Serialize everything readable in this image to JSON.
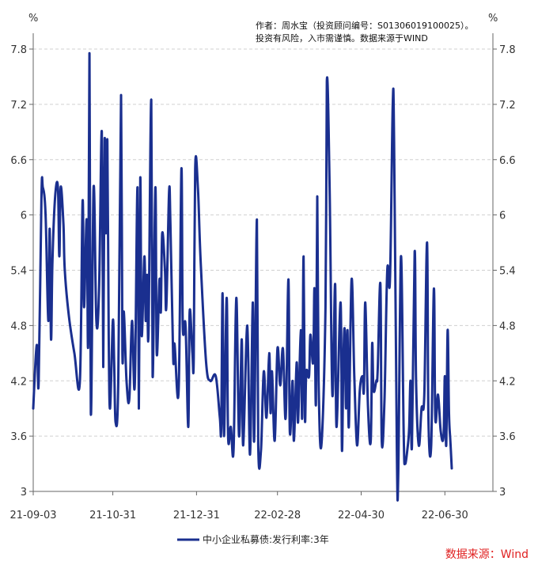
{
  "note": {
    "line1": "作者：周水宝（投资顾问编号：S0130601910​0025）。",
    "line2": "投资有风险，入市需谨慎。数据来源于WIND"
  },
  "source_label": "数据来源：Wind",
  "chart_data": {
    "type": "line",
    "left_unit": "%",
    "right_unit": "%",
    "yticks": [
      "7.8",
      "7.2",
      "6.6",
      "6",
      "5.4",
      "4.8",
      "4.2",
      "3.6",
      "3"
    ],
    "ylim": [
      3.0,
      7.8
    ],
    "xticks": [
      "21-09-03",
      "21-10-31",
      "21-12-31",
      "22-02-28",
      "22-04-30",
      "22-06-30"
    ],
    "xtick_index": [
      0,
      58,
      119,
      178,
      239,
      300
    ],
    "x_range": [
      0,
      335
    ],
    "grid": "horizontal-dashed",
    "legend_position": "bottom-center",
    "series": [
      {
        "name": "中小企业私募债:发行利率:3年",
        "color": "#1a2f8f",
        "points": [
          [
            0,
            3.9
          ],
          [
            2,
            4.5
          ],
          [
            3,
            4.55
          ],
          [
            4,
            4.2
          ],
          [
            6,
            6.2
          ],
          [
            7,
            6.3
          ],
          [
            9,
            6.0
          ],
          [
            11,
            4.85
          ],
          [
            12,
            5.85
          ],
          [
            13,
            4.65
          ],
          [
            14,
            5.5
          ],
          [
            16,
            6.2
          ],
          [
            18,
            6.3
          ],
          [
            19,
            5.55
          ],
          [
            20,
            6.3
          ],
          [
            22,
            5.9
          ],
          [
            23,
            5.4
          ],
          [
            26,
            4.9
          ],
          [
            30,
            4.5
          ],
          [
            34,
            4.2
          ],
          [
            36,
            6.15
          ],
          [
            37,
            5.0
          ],
          [
            39,
            5.95
          ],
          [
            40,
            4.6
          ],
          [
            41,
            7.75
          ],
          [
            42,
            3.85
          ],
          [
            44,
            6.3
          ],
          [
            46,
            4.85
          ],
          [
            48,
            5.2
          ],
          [
            50,
            6.9
          ],
          [
            51,
            4.35
          ],
          [
            52,
            6.8
          ],
          [
            53,
            5.8
          ],
          [
            54,
            6.8
          ],
          [
            55,
            4.7
          ],
          [
            56,
            3.9
          ],
          [
            58,
            4.85
          ],
          [
            59,
            4.4
          ],
          [
            60,
            3.75
          ],
          [
            62,
            4.2
          ],
          [
            64,
            7.3
          ],
          [
            65,
            4.5
          ],
          [
            66,
            4.95
          ],
          [
            68,
            4.2
          ],
          [
            70,
            4.0
          ],
          [
            72,
            4.85
          ],
          [
            74,
            4.15
          ],
          [
            76,
            6.3
          ],
          [
            77,
            3.9
          ],
          [
            78,
            6.4
          ],
          [
            79,
            4.7
          ],
          [
            81,
            5.55
          ],
          [
            82,
            4.85
          ],
          [
            83,
            5.35
          ],
          [
            84,
            4.7
          ],
          [
            86,
            7.25
          ],
          [
            87,
            4.25
          ],
          [
            89,
            6.3
          ],
          [
            90,
            4.5
          ],
          [
            92,
            5.3
          ],
          [
            93,
            4.95
          ],
          [
            94,
            5.8
          ],
          [
            96,
            5.4
          ],
          [
            97,
            5.0
          ],
          [
            99,
            6.25
          ],
          [
            100,
            5.9
          ],
          [
            102,
            4.45
          ],
          [
            103,
            4.6
          ],
          [
            106,
            4.1
          ],
          [
            108,
            6.5
          ],
          [
            109,
            4.8
          ],
          [
            111,
            4.8
          ],
          [
            113,
            3.7
          ],
          [
            114,
            4.95
          ],
          [
            116,
            4.5
          ],
          [
            117,
            4.45
          ],
          [
            118,
            6.5
          ],
          [
            120,
            6.3
          ],
          [
            122,
            5.5
          ],
          [
            126,
            4.4
          ],
          [
            129,
            4.2
          ],
          [
            133,
            4.25
          ],
          [
            136,
            3.8
          ],
          [
            137,
            3.7
          ],
          [
            138,
            5.15
          ],
          [
            139,
            3.6
          ],
          [
            141,
            5.1
          ],
          [
            142,
            3.6
          ],
          [
            144,
            3.7
          ],
          [
            146,
            3.45
          ],
          [
            148,
            5.1
          ],
          [
            150,
            3.6
          ],
          [
            152,
            4.65
          ],
          [
            153,
            3.5
          ],
          [
            156,
            4.8
          ],
          [
            158,
            3.4
          ],
          [
            160,
            5.05
          ],
          [
            161,
            3.55
          ],
          [
            163,
            5.95
          ],
          [
            164,
            3.5
          ],
          [
            166,
            3.45
          ],
          [
            168,
            4.3
          ],
          [
            170,
            3.8
          ],
          [
            172,
            4.5
          ],
          [
            173,
            3.85
          ],
          [
            174,
            4.3
          ],
          [
            176,
            3.55
          ],
          [
            178,
            4.55
          ],
          [
            180,
            4.15
          ],
          [
            182,
            4.55
          ],
          [
            184,
            3.8
          ],
          [
            186,
            5.3
          ],
          [
            187,
            3.65
          ],
          [
            189,
            4.2
          ],
          [
            190,
            3.55
          ],
          [
            192,
            4.4
          ],
          [
            193,
            3.75
          ],
          [
            195,
            4.75
          ],
          [
            196,
            3.8
          ],
          [
            197,
            5.55
          ],
          [
            198,
            3.8
          ],
          [
            199,
            4.3
          ],
          [
            201,
            4.25
          ],
          [
            202,
            4.7
          ],
          [
            204,
            4.4
          ],
          [
            205,
            5.2
          ],
          [
            206,
            3.95
          ],
          [
            207,
            6.2
          ],
          [
            208,
            4.2
          ],
          [
            210,
            3.5
          ],
          [
            213,
            5.0
          ],
          [
            214,
            7.45
          ],
          [
            216,
            6.3
          ],
          [
            218,
            4.05
          ],
          [
            220,
            5.25
          ],
          [
            221,
            3.7
          ],
          [
            224,
            5.05
          ],
          [
            225,
            3.45
          ],
          [
            226,
            4.4
          ],
          [
            227,
            4.75
          ],
          [
            228,
            3.9
          ],
          [
            229,
            4.75
          ],
          [
            230,
            3.7
          ],
          [
            232,
            5.3
          ],
          [
            234,
            4.25
          ],
          [
            236,
            3.5
          ],
          [
            238,
            4.1
          ],
          [
            240,
            4.25
          ],
          [
            241,
            4.1
          ],
          [
            242,
            5.05
          ],
          [
            244,
            3.9
          ],
          [
            246,
            3.55
          ],
          [
            247,
            4.6
          ],
          [
            248,
            4.1
          ],
          [
            250,
            4.2
          ],
          [
            251,
            4.3
          ],
          [
            253,
            5.25
          ],
          [
            254,
            3.55
          ],
          [
            256,
            4.0
          ],
          [
            258,
            5.4
          ],
          [
            260,
            5.3
          ],
          [
            262,
            7.2
          ],
          [
            263,
            6.8
          ],
          [
            265,
            3.45
          ],
          [
            266,
            3.15
          ],
          [
            268,
            5.55
          ],
          [
            270,
            3.6
          ],
          [
            271,
            3.3
          ],
          [
            273,
            3.5
          ],
          [
            274,
            3.7
          ],
          [
            275,
            4.2
          ],
          [
            276,
            3.5
          ],
          [
            278,
            5.6
          ],
          [
            279,
            4.2
          ],
          [
            281,
            3.5
          ],
          [
            283,
            3.9
          ],
          [
            285,
            4.05
          ],
          [
            287,
            5.7
          ],
          [
            288,
            3.8
          ],
          [
            290,
            3.5
          ],
          [
            292,
            5.2
          ],
          [
            293,
            3.8
          ],
          [
            295,
            4.05
          ],
          [
            297,
            3.65
          ],
          [
            299,
            3.6
          ],
          [
            300,
            4.25
          ],
          [
            301,
            3.5
          ],
          [
            302,
            4.75
          ],
          [
            303,
            3.85
          ],
          [
            304,
            3.55
          ],
          [
            305,
            3.25
          ]
        ]
      }
    ]
  }
}
